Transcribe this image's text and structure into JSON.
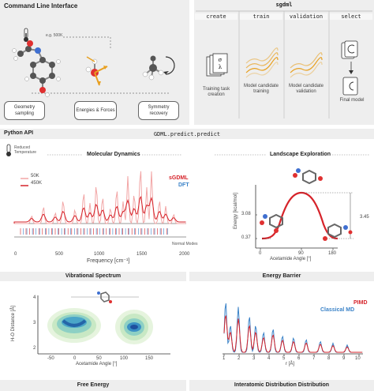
{
  "cli": {
    "title": "Command Line Interface",
    "temp_hint": "e.g. 500K",
    "boxes": [
      "Geometry sampling",
      "Energies & Forces",
      "Symmetry recovery"
    ]
  },
  "sgdml": {
    "title": "sgdml",
    "commands": [
      "create",
      "train",
      "validation",
      "select"
    ],
    "steps": [
      "Training task creation",
      "Model candidate training",
      "Model candidate validation",
      "Final model"
    ],
    "task_glyph": "σ\nλ"
  },
  "python_api": {
    "title": "Python API",
    "call": "GDML.predict.predict",
    "temp_note": "Reduced Temperature"
  },
  "md": {
    "title": "Molecular Dynamics",
    "legend": [
      "50K",
      "450K"
    ],
    "method_labels": [
      "sGDML",
      "DFT"
    ],
    "normal_modes": "Normal Modes",
    "xlabel": "Frequency [cm⁻¹]",
    "xticks": [
      "0",
      "500",
      "1000",
      "1500",
      "2000"
    ]
  },
  "landscape": {
    "title": "Landscape Exploration",
    "ylabel": "Energy [kcal/mol]",
    "yticks": [
      "3.08",
      "0.37"
    ],
    "barrier_value": "3.45",
    "xlabel": "Acetamide Angle [°]",
    "xticks": [
      "0",
      "90",
      "180"
    ]
  },
  "vib": {
    "title": "Vibrational Spectrum",
    "ylabel": "H-O Distance [Å]",
    "yticks": [
      "4",
      "3",
      "2"
    ],
    "xlabel": "Acetamide Angle [°]",
    "xticks": [
      "-50",
      "0",
      "50",
      "100",
      "150"
    ]
  },
  "barrier": {
    "title": "Energy Barrier"
  },
  "rdf": {
    "legend": [
      "PIMD",
      "Classical MD"
    ],
    "xlabel": "r [Å]",
    "xticks": [
      "1",
      "2",
      "3",
      "4",
      "5",
      "6",
      "7",
      "8",
      "9",
      "10"
    ]
  },
  "footer": {
    "labels": [
      "Free Energy",
      "Interatomic Distribution Distribution"
    ]
  },
  "colors": {
    "sgdml_red": "#d6232a",
    "dft_blue": "#3b83c8",
    "light_red": "#f2a6a6",
    "panel_grey": "#eeeeee",
    "orange": "#e8a020",
    "teal": "#3a9fbf",
    "navy": "#2c3e73"
  }
}
